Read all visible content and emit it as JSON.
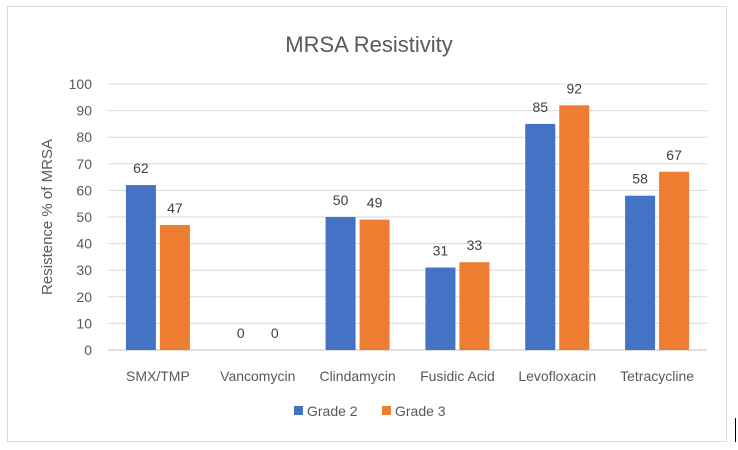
{
  "chart_data": {
    "type": "bar",
    "title": "MRSA Resistivity",
    "xlabel": "",
    "ylabel": "Resistence % of MRSA",
    "ylim": [
      0,
      100
    ],
    "ytick_step": 10,
    "grid": true,
    "legend": "bottom",
    "categories": [
      "SMX/TMP",
      "Vancomycin",
      "Clindamycin",
      "Fusidic Acid",
      "Levofloxacin",
      "Tetracycline"
    ],
    "series": [
      {
        "name": "Grade 2",
        "color": "#4472c4",
        "values": [
          62,
          0,
          50,
          31,
          85,
          58
        ]
      },
      {
        "name": "Grade 3",
        "color": "#ed7d31",
        "values": [
          47,
          0,
          49,
          33,
          92,
          67
        ]
      }
    ]
  }
}
